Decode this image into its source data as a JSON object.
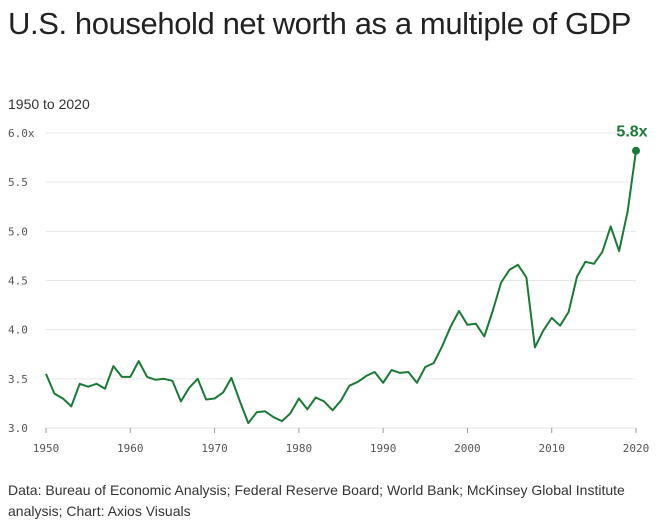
{
  "header": {
    "title": "U.S. household net worth as a multiple of GDP",
    "subtitle": "1950 to 2020"
  },
  "footer": {
    "source": "Data: Bureau of Economic Analysis; Federal Reserve Board; World Bank; McKinsey Global Institute analysis; Chart: Axios Visuals"
  },
  "colors": {
    "line": "#1a7a35",
    "grid": "#e6e6e6",
    "text": "#222222"
  },
  "chart_data": {
    "type": "line",
    "title": "U.S. household net worth as a multiple of GDP",
    "subtitle": "1950 to 2020",
    "xlabel": "",
    "ylabel": "",
    "xlim": [
      1950,
      2020
    ],
    "ylim": [
      3.0,
      6.0
    ],
    "grid": true,
    "y_ticks": [
      3.0,
      3.5,
      4.0,
      4.5,
      5.0,
      5.5,
      6.0
    ],
    "y_tick_labels": [
      "3.0",
      "3.5",
      "4.0",
      "4.5",
      "5.0",
      "5.5",
      "6.0x"
    ],
    "x_ticks": [
      1950,
      1960,
      1970,
      1980,
      1990,
      2000,
      2010,
      2020
    ],
    "x_tick_labels": [
      "1950",
      "1960",
      "1970",
      "1980",
      "1990",
      "2000",
      "2010",
      "2020"
    ],
    "annotation": {
      "label": "5.8x",
      "x": 2020,
      "y": 5.82
    },
    "series": [
      {
        "name": "Net worth / GDP",
        "x": [
          1950,
          1951,
          1952,
          1953,
          1954,
          1955,
          1956,
          1957,
          1958,
          1959,
          1960,
          1961,
          1962,
          1963,
          1964,
          1965,
          1966,
          1967,
          1968,
          1969,
          1970,
          1971,
          1972,
          1973,
          1974,
          1975,
          1976,
          1977,
          1978,
          1979,
          1980,
          1981,
          1982,
          1983,
          1984,
          1985,
          1986,
          1987,
          1988,
          1989,
          1990,
          1991,
          1992,
          1993,
          1994,
          1995,
          1996,
          1997,
          1998,
          1999,
          2000,
          2001,
          2002,
          2003,
          2004,
          2005,
          2006,
          2007,
          2008,
          2009,
          2010,
          2011,
          2012,
          2013,
          2014,
          2015,
          2016,
          2017,
          2018,
          2019,
          2020
        ],
        "values": [
          3.55,
          3.35,
          3.3,
          3.22,
          3.45,
          3.42,
          3.45,
          3.4,
          3.63,
          3.52,
          3.52,
          3.68,
          3.52,
          3.49,
          3.5,
          3.48,
          3.27,
          3.41,
          3.5,
          3.29,
          3.3,
          3.36,
          3.51,
          3.27,
          3.05,
          3.16,
          3.17,
          3.11,
          3.07,
          3.15,
          3.3,
          3.19,
          3.31,
          3.27,
          3.18,
          3.28,
          3.43,
          3.47,
          3.53,
          3.57,
          3.46,
          3.59,
          3.56,
          3.57,
          3.46,
          3.62,
          3.66,
          3.83,
          4.03,
          4.19,
          4.05,
          4.06,
          3.93,
          4.19,
          4.48,
          4.61,
          4.66,
          4.53,
          3.82,
          3.99,
          4.12,
          4.04,
          4.18,
          4.54,
          4.69,
          4.67,
          4.79,
          5.05,
          4.8,
          5.2,
          5.82
        ]
      }
    ]
  }
}
